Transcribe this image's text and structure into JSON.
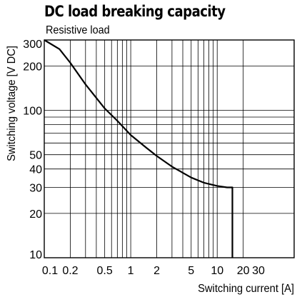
{
  "chart_data": {
    "type": "line",
    "title": "DC load breaking capacity",
    "subtitle": "Resistive load",
    "xlabel": "Switching current [A]",
    "ylabel": "Switching voltage [V DC]",
    "x_scale": "log",
    "y_scale": "log",
    "xlim": [
      0.1,
      30
    ],
    "ylim": [
      10,
      300
    ],
    "grid": true,
    "x_ticks": [
      0.1,
      0.2,
      0.5,
      1,
      2,
      5,
      10,
      20,
      30
    ],
    "x_tick_labels": [
      "0.1",
      "0.2",
      "0.5",
      "1",
      "2",
      "5",
      "10",
      "20",
      "30"
    ],
    "y_ticks": [
      10,
      20,
      30,
      40,
      50,
      100,
      200,
      300
    ],
    "y_tick_labels": [
      "10",
      "20",
      "30",
      "40",
      "50",
      "100",
      "200",
      "300"
    ],
    "series": [
      {
        "x": [
          0.1,
          0.15,
          0.2,
          0.3,
          0.5,
          0.7,
          1,
          1.5,
          2,
          3,
          5,
          7,
          10,
          13,
          15,
          15
        ],
        "y": [
          300,
          260,
          210,
          150,
          103,
          85,
          68,
          56,
          49,
          41.5,
          35,
          32.3,
          30.7,
          30,
          30,
          10
        ]
      }
    ]
  }
}
